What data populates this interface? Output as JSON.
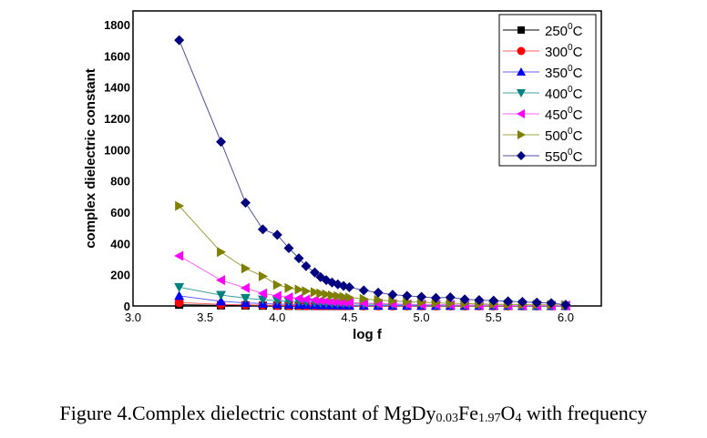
{
  "chart_data": {
    "type": "line",
    "title": "",
    "xlabel": "log f",
    "ylabel": "complex dielectric constant",
    "xlim": [
      3.0,
      6.25
    ],
    "ylim": [
      0,
      1900
    ],
    "xticks": [
      "3.0",
      "3.5",
      "4.0",
      "4.5",
      "5.0",
      "5.5",
      "6.0"
    ],
    "xtick_values": [
      3.0,
      3.5,
      4.0,
      4.5,
      5.0,
      5.5,
      6.0
    ],
    "yticks": [
      "0",
      "200",
      "400",
      "600",
      "800",
      "1000",
      "1200",
      "1400",
      "1600",
      "1800"
    ],
    "ytick_values": [
      0,
      200,
      400,
      600,
      800,
      1000,
      1200,
      1400,
      1600,
      1800
    ],
    "legend_position": "top-right",
    "x": [
      3.32,
      3.61,
      3.78,
      3.9,
      4.0,
      4.08,
      4.15,
      4.2,
      4.26,
      4.3,
      4.34,
      4.38,
      4.42,
      4.46,
      4.5,
      4.6,
      4.7,
      4.8,
      4.9,
      5.0,
      5.1,
      5.2,
      5.3,
      5.4,
      5.5,
      5.6,
      5.7,
      5.8,
      5.9,
      6.0
    ],
    "series": [
      {
        "name": "250°C",
        "temp": "250",
        "color": "#000000",
        "marker": "square",
        "values": [
          8,
          4,
          3,
          2,
          2,
          1,
          1,
          1,
          1,
          1,
          1,
          1,
          1,
          1,
          1,
          1,
          1,
          1,
          1,
          1,
          1,
          1,
          1,
          1,
          1,
          1,
          1,
          1,
          1,
          1
        ]
      },
      {
        "name": "300°C",
        "temp": "300",
        "color": "#ff0000",
        "marker": "circle",
        "values": [
          22,
          10,
          7,
          5,
          4,
          3,
          3,
          2,
          2,
          2,
          2,
          2,
          2,
          2,
          2,
          1,
          1,
          1,
          1,
          1,
          1,
          1,
          1,
          1,
          1,
          1,
          1,
          1,
          1,
          1
        ]
      },
      {
        "name": "350°C",
        "temp": "350",
        "color": "#0000ff",
        "marker": "triangle-up",
        "values": [
          65,
          30,
          20,
          15,
          12,
          10,
          9,
          8,
          7,
          6,
          6,
          5,
          5,
          5,
          4,
          4,
          3,
          3,
          3,
          2,
          2,
          2,
          2,
          2,
          2,
          2,
          1,
          1,
          1,
          1
        ]
      },
      {
        "name": "400°C",
        "temp": "400",
        "color": "#008080",
        "marker": "triangle-down",
        "values": [
          120,
          70,
          50,
          40,
          34,
          30,
          27,
          24,
          22,
          20,
          18,
          17,
          16,
          15,
          14,
          12,
          10,
          9,
          8,
          7,
          6,
          5,
          5,
          4,
          4,
          3,
          3,
          3,
          2,
          2
        ]
      },
      {
        "name": "450°C",
        "temp": "450",
        "color": "#ff00ff",
        "marker": "triangle-left",
        "values": [
          320,
          165,
          115,
          80,
          65,
          55,
          48,
          42,
          38,
          34,
          31,
          28,
          26,
          24,
          22,
          18,
          15,
          13,
          11,
          9,
          8,
          7,
          6,
          5,
          5,
          4,
          4,
          3,
          3,
          3
        ]
      },
      {
        "name": "500°C",
        "temp": "500",
        "color": "#808000",
        "marker": "triangle-right",
        "values": [
          640,
          345,
          240,
          190,
          135,
          115,
          105,
          95,
          88,
          80,
          74,
          68,
          63,
          58,
          54,
          45,
          38,
          32,
          27,
          23,
          20,
          17,
          15,
          13,
          11,
          10,
          9,
          8,
          7,
          6
        ]
      },
      {
        "name": "550°C",
        "temp": "550",
        "color": "#000080",
        "marker": "diamond",
        "values": [
          1700,
          1050,
          660,
          490,
          455,
          370,
          305,
          255,
          215,
          185,
          165,
          150,
          138,
          128,
          120,
          100,
          85,
          72,
          65,
          58,
          52,
          55,
          42,
          38,
          34,
          30,
          26,
          22,
          18,
          8
        ]
      }
    ]
  },
  "legend": {
    "items": [
      {
        "label": "250",
        "unit": "C",
        "sup": "0"
      },
      {
        "label": "300",
        "unit": "C",
        "sup": "0"
      },
      {
        "label": "350",
        "unit": "C",
        "sup": "0"
      },
      {
        "label": "400",
        "unit": "C",
        "sup": "0"
      },
      {
        "label": "450",
        "unit": "C",
        "sup": "0"
      },
      {
        "label": "500",
        "unit": "C",
        "sup": "0"
      },
      {
        "label": "550",
        "unit": "C",
        "sup": "0"
      }
    ]
  },
  "caption": {
    "prefix": "Figure 4.Complex dielectric constant of MgDy",
    "sub1": "0.03",
    "mid1": "Fe",
    "sub2": "1.97",
    "mid2": "O",
    "sub3": "4",
    "suffix": " with frequency"
  }
}
